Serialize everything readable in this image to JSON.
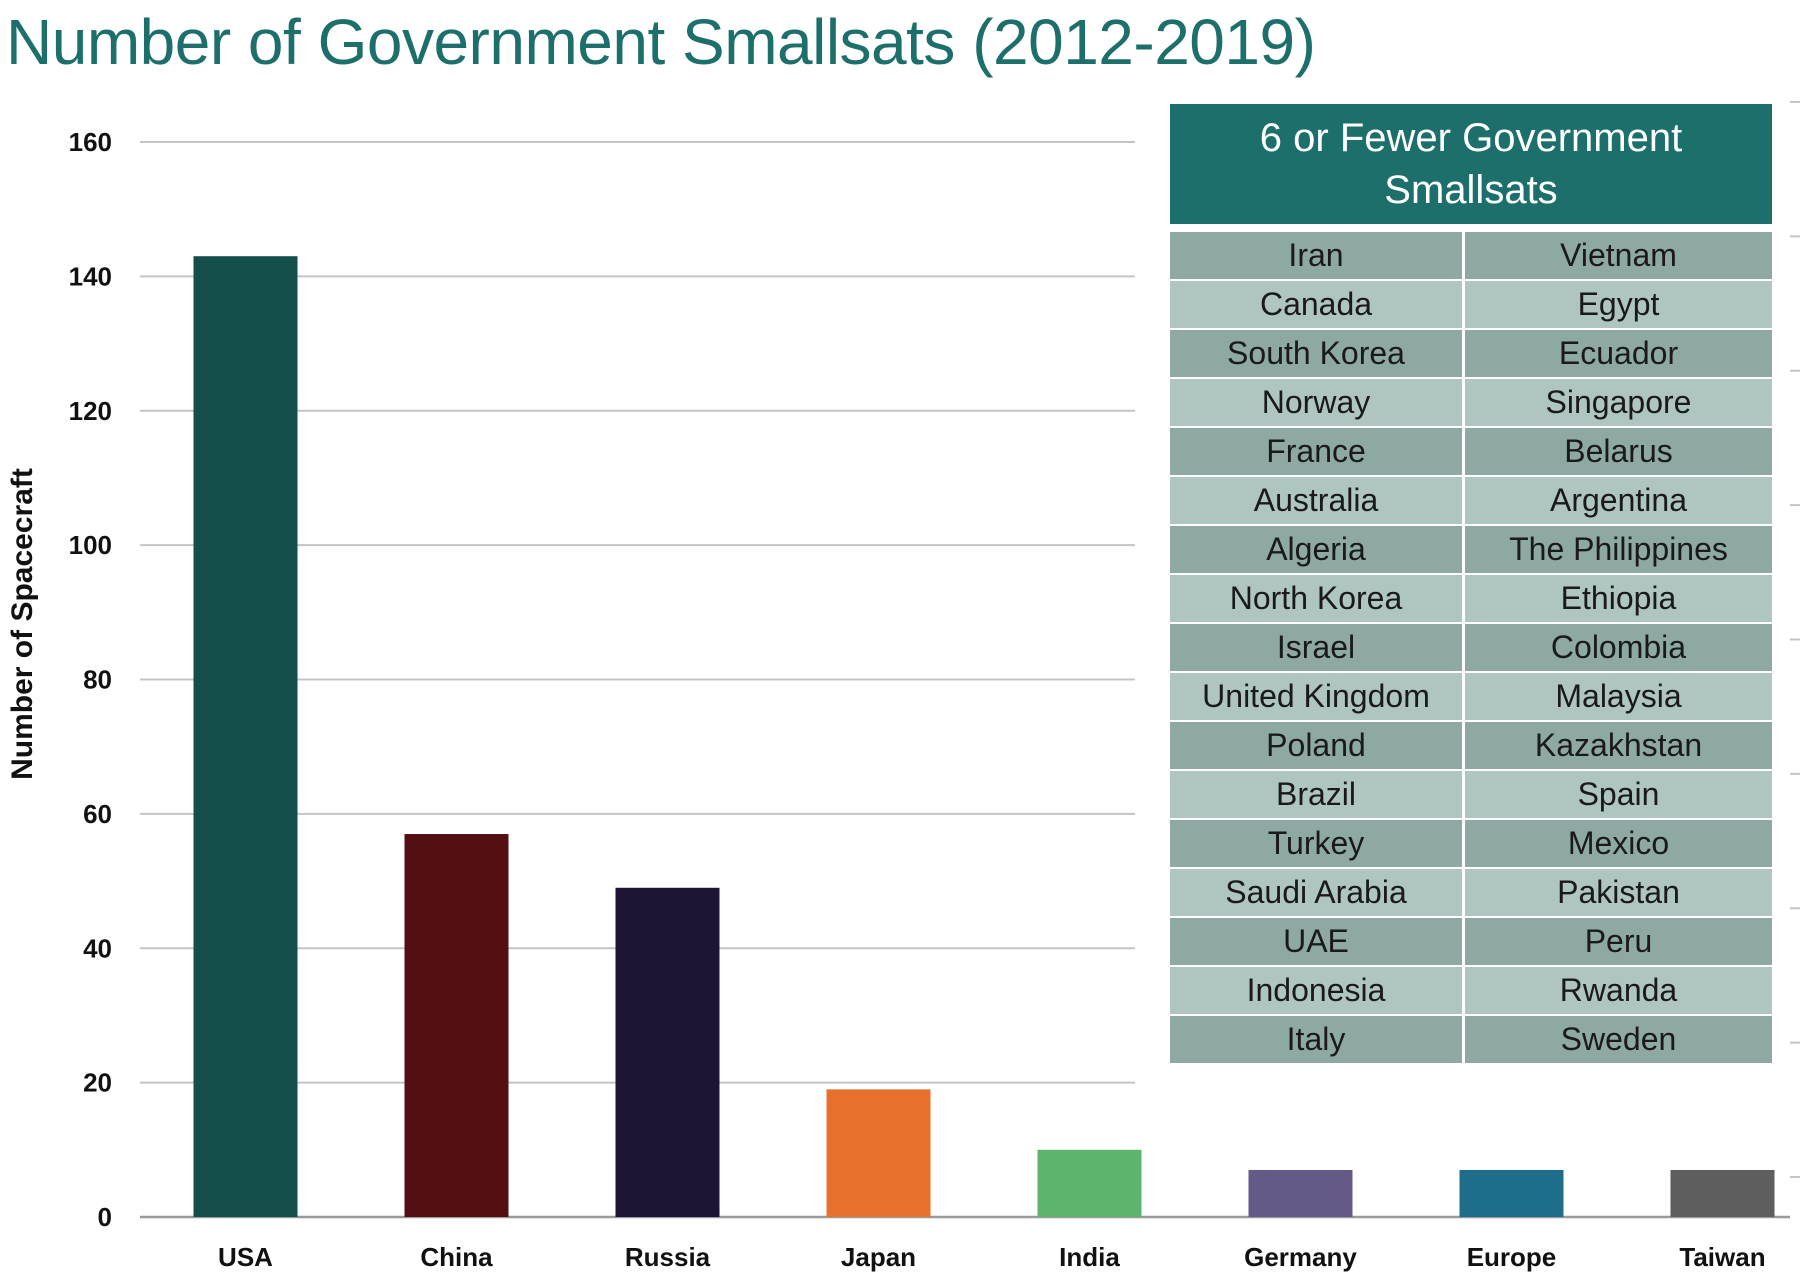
{
  "chart_data": {
    "type": "bar",
    "title": "Number of Government Smallsats (2012-2019)",
    "ylabel": "Number of Spacecraft",
    "xlabel": "",
    "ylim": [
      0,
      160
    ],
    "yticks": [
      0,
      20,
      40,
      60,
      80,
      100,
      120,
      140,
      160
    ],
    "grid": true,
    "categories": [
      "USA",
      "China",
      "Russia",
      "Japan",
      "India",
      "Germany",
      "Europe",
      "Taiwan"
    ],
    "values": [
      143,
      57,
      49,
      19,
      10,
      7,
      7,
      7
    ],
    "colors": [
      "#134e4a",
      "#540f12",
      "#1e1433",
      "#e5712d",
      "#5db46f",
      "#655a86",
      "#1d6d8b",
      "#5e5e5e"
    ]
  },
  "inset": {
    "title": "6 or Fewer Government Smallsats",
    "header_color": "#1d6f6c",
    "rows": [
      [
        "Iran",
        "Vietnam"
      ],
      [
        "Canada",
        "Egypt"
      ],
      [
        "South Korea",
        "Ecuador"
      ],
      [
        "Norway",
        "Singapore"
      ],
      [
        "France",
        "Belarus"
      ],
      [
        "Australia",
        "Argentina"
      ],
      [
        "Algeria",
        "The Philippines"
      ],
      [
        "North Korea",
        "Ethiopia"
      ],
      [
        "Israel",
        "Colombia"
      ],
      [
        "United Kingdom",
        "Malaysia"
      ],
      [
        "Poland",
        "Kazakhstan"
      ],
      [
        "Brazil",
        "Spain"
      ],
      [
        "Turkey",
        "Mexico"
      ],
      [
        "Saudi Arabia",
        "Pakistan"
      ],
      [
        "UAE",
        "Peru"
      ],
      [
        "Indonesia",
        "Rwanda"
      ],
      [
        "Italy",
        "Sweden"
      ]
    ]
  }
}
